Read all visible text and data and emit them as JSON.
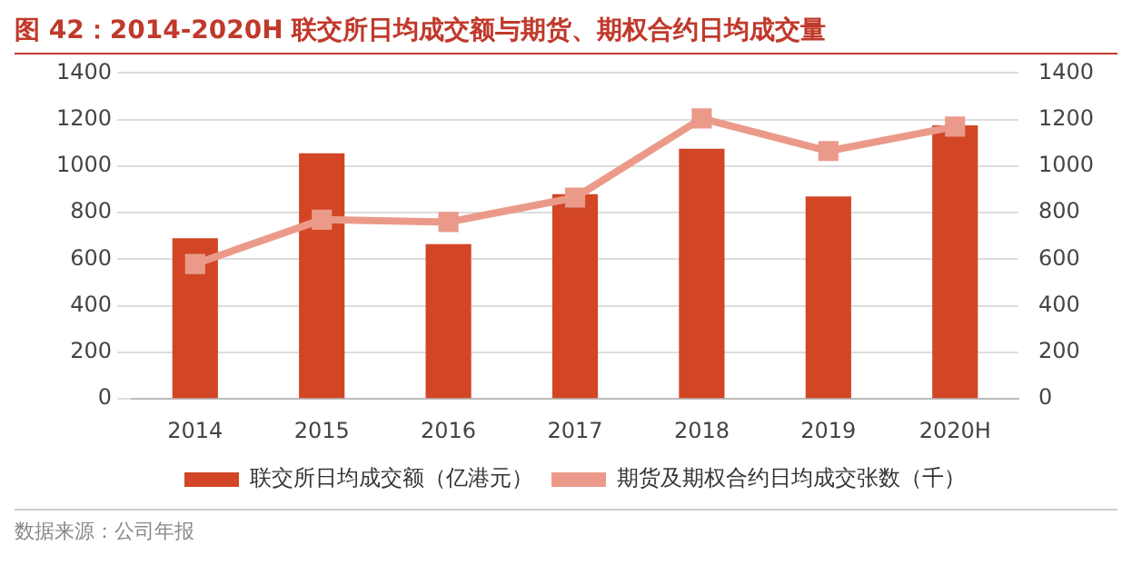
{
  "chart_data": {
    "type": "bar",
    "title": "图 42：2014-2020H 联交所日均成交额与期货、期权合约日均成交量",
    "categories": [
      "2014",
      "2015",
      "2016",
      "2017",
      "2018",
      "2019",
      "2020H"
    ],
    "series": [
      {
        "name": "联交所日均成交额（亿港元）",
        "color": "#d24625",
        "values": [
          690,
          1055,
          665,
          880,
          1075,
          870,
          1175
        ]
      },
      {
        "name": "期货及期权合约日均成交张数（千）",
        "type": "line",
        "axis": "y2",
        "color": "#eb9a8a",
        "marker": "square",
        "values": [
          580,
          770,
          760,
          865,
          1205,
          1065,
          1170
        ]
      }
    ],
    "ylim": [
      0,
      1400
    ],
    "yticks": [
      0,
      200,
      400,
      600,
      800,
      1000,
      1200,
      1400
    ],
    "y2lim": [
      0,
      1400
    ],
    "y2ticks": [
      0,
      200,
      400,
      600,
      800,
      1000,
      1200,
      1400
    ],
    "grid": "y",
    "legend": "bottom",
    "annotations": [
      "数据来源：公司年报"
    ]
  }
}
